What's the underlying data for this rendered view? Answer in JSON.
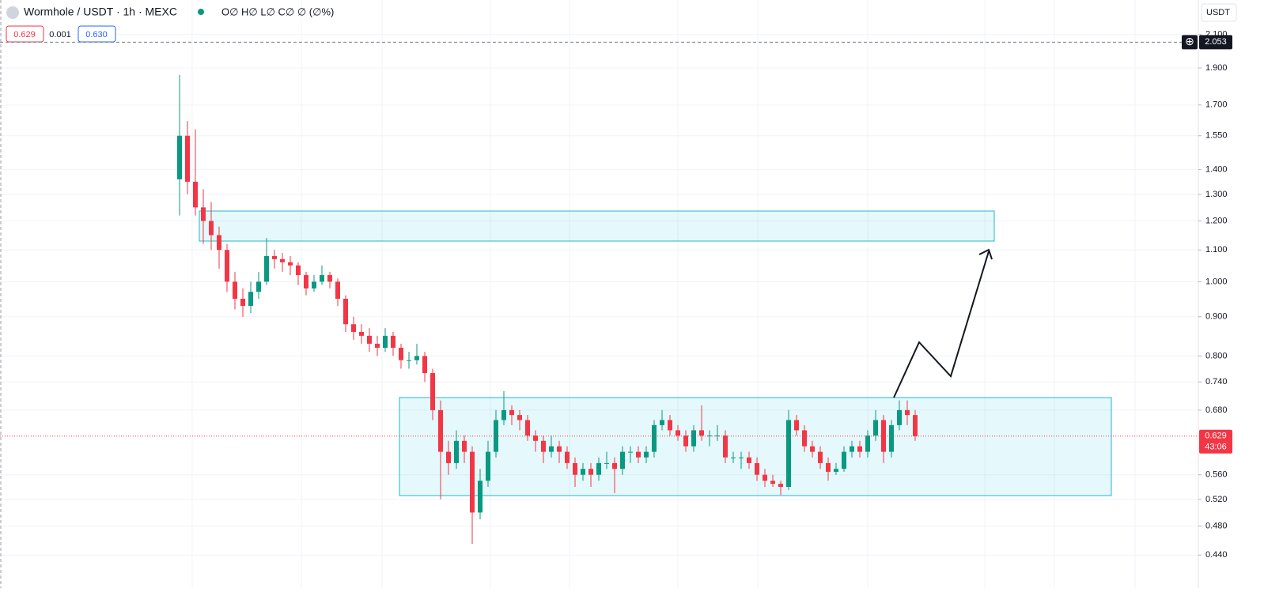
{
  "chart_data": {
    "type": "candlestick",
    "title": "Wormhole / USDT · 1h · MEXC",
    "ohlc_label": "O∅ H∅ L∅ C∅ ∅ (∅%)",
    "bid": "0.629",
    "spread": "0.001",
    "ask": "0.630",
    "currency": "USDT",
    "marker_price": {
      "value": 2.053,
      "label": "2.053"
    },
    "last_price": {
      "value": 0.629,
      "label": "0.629"
    },
    "countdown": "43:06",
    "log_scale": true,
    "grid": true,
    "up_color": "#089981",
    "down_color": "#f23645",
    "ylim": [
      0.412,
      2.33
    ],
    "yticks": [
      {
        "value": 0.44,
        "label": "0.440"
      },
      {
        "value": 0.48,
        "label": "0.480"
      },
      {
        "value": 0.52,
        "label": "0.520"
      },
      {
        "value": 0.56,
        "label": "0.560"
      },
      {
        "value": 0.68,
        "label": "0.680"
      },
      {
        "value": 0.74,
        "label": "0.740"
      },
      {
        "value": 0.8,
        "label": "0.800"
      },
      {
        "value": 0.9,
        "label": "0.900"
      },
      {
        "value": 1,
        "label": "1.000"
      },
      {
        "value": 1.1,
        "label": "1.100"
      },
      {
        "value": 1.2,
        "label": "1.200"
      },
      {
        "value": 1.3,
        "label": "1.300"
      },
      {
        "value": 1.4,
        "label": "1.400"
      },
      {
        "value": 1.55,
        "label": "1.550"
      },
      {
        "value": 1.7,
        "label": "1.700"
      },
      {
        "value": 1.9,
        "label": "1.900"
      },
      {
        "value": 2.1,
        "label": "2.100"
      }
    ],
    "candles": [
      [
        1.36,
        1.86,
        1.22,
        1.55
      ],
      [
        1.55,
        1.62,
        1.3,
        1.35
      ],
      [
        1.35,
        1.58,
        1.22,
        1.25
      ],
      [
        1.25,
        1.32,
        1.12,
        1.2
      ],
      [
        1.2,
        1.27,
        1.1,
        1.15
      ],
      [
        1.15,
        1.18,
        1.04,
        1.1
      ],
      [
        1.1,
        1.12,
        0.97,
        1.0
      ],
      [
        1.0,
        1.03,
        0.92,
        0.95
      ],
      [
        0.95,
        0.98,
        0.9,
        0.93
      ],
      [
        0.93,
        1.0,
        0.91,
        0.97
      ],
      [
        0.97,
        1.03,
        0.95,
        1.0
      ],
      [
        1.0,
        1.14,
        0.99,
        1.08
      ],
      [
        1.08,
        1.1,
        1.04,
        1.07
      ],
      [
        1.07,
        1.09,
        1.03,
        1.06
      ],
      [
        1.06,
        1.08,
        1.02,
        1.05
      ],
      [
        1.05,
        1.06,
        0.99,
        1.02
      ],
      [
        1.02,
        1.03,
        0.96,
        0.98
      ],
      [
        0.98,
        1.02,
        0.97,
        1.0
      ],
      [
        1.0,
        1.05,
        0.99,
        1.02
      ],
      [
        1.02,
        1.03,
        0.98,
        1.0
      ],
      [
        1.0,
        1.01,
        0.93,
        0.95
      ],
      [
        0.95,
        0.96,
        0.86,
        0.88
      ],
      [
        0.88,
        0.9,
        0.84,
        0.86
      ],
      [
        0.86,
        0.88,
        0.83,
        0.85
      ],
      [
        0.85,
        0.87,
        0.81,
        0.83
      ],
      [
        0.83,
        0.85,
        0.8,
        0.82
      ],
      [
        0.82,
        0.87,
        0.81,
        0.85
      ],
      [
        0.85,
        0.86,
        0.8,
        0.82
      ],
      [
        0.82,
        0.83,
        0.77,
        0.79
      ],
      [
        0.79,
        0.81,
        0.77,
        0.79
      ],
      [
        0.79,
        0.83,
        0.78,
        0.8
      ],
      [
        0.8,
        0.81,
        0.74,
        0.76
      ],
      [
        0.76,
        0.77,
        0.66,
        0.68
      ],
      [
        0.68,
        0.7,
        0.52,
        0.6
      ],
      [
        0.6,
        0.62,
        0.56,
        0.58
      ],
      [
        0.58,
        0.64,
        0.57,
        0.62
      ],
      [
        0.62,
        0.63,
        0.58,
        0.6
      ],
      [
        0.6,
        0.61,
        0.455,
        0.5
      ],
      [
        0.5,
        0.57,
        0.49,
        0.55
      ],
      [
        0.55,
        0.62,
        0.54,
        0.6
      ],
      [
        0.6,
        0.68,
        0.59,
        0.66
      ],
      [
        0.66,
        0.72,
        0.65,
        0.68
      ],
      [
        0.68,
        0.69,
        0.65,
        0.67
      ],
      [
        0.67,
        0.68,
        0.64,
        0.66
      ],
      [
        0.66,
        0.67,
        0.62,
        0.63
      ],
      [
        0.63,
        0.64,
        0.6,
        0.62
      ],
      [
        0.62,
        0.63,
        0.58,
        0.6
      ],
      [
        0.6,
        0.63,
        0.59,
        0.61
      ],
      [
        0.61,
        0.62,
        0.58,
        0.6
      ],
      [
        0.6,
        0.61,
        0.57,
        0.58
      ],
      [
        0.58,
        0.59,
        0.54,
        0.56
      ],
      [
        0.56,
        0.58,
        0.55,
        0.57
      ],
      [
        0.57,
        0.58,
        0.54,
        0.56
      ],
      [
        0.56,
        0.59,
        0.55,
        0.58
      ],
      [
        0.58,
        0.6,
        0.57,
        0.58
      ],
      [
        0.58,
        0.59,
        0.53,
        0.57
      ],
      [
        0.57,
        0.61,
        0.56,
        0.6
      ],
      [
        0.6,
        0.61,
        0.58,
        0.6
      ],
      [
        0.6,
        0.61,
        0.58,
        0.59
      ],
      [
        0.59,
        0.61,
        0.58,
        0.6
      ],
      [
        0.6,
        0.66,
        0.59,
        0.65
      ],
      [
        0.65,
        0.68,
        0.64,
        0.66
      ],
      [
        0.66,
        0.67,
        0.63,
        0.64
      ],
      [
        0.64,
        0.65,
        0.62,
        0.63
      ],
      [
        0.63,
        0.64,
        0.6,
        0.61
      ],
      [
        0.61,
        0.65,
        0.6,
        0.64
      ],
      [
        0.64,
        0.69,
        0.62,
        0.63
      ],
      [
        0.63,
        0.64,
        0.61,
        0.63
      ],
      [
        0.63,
        0.65,
        0.62,
        0.63
      ],
      [
        0.63,
        0.64,
        0.58,
        0.59
      ],
      [
        0.59,
        0.6,
        0.58,
        0.59
      ],
      [
        0.59,
        0.6,
        0.57,
        0.59
      ],
      [
        0.59,
        0.6,
        0.57,
        0.58
      ],
      [
        0.58,
        0.59,
        0.55,
        0.56
      ],
      [
        0.56,
        0.57,
        0.54,
        0.55
      ],
      [
        0.55,
        0.56,
        0.54,
        0.545
      ],
      [
        0.545,
        0.55,
        0.527,
        0.54
      ],
      [
        0.54,
        0.68,
        0.535,
        0.66
      ],
      [
        0.66,
        0.67,
        0.63,
        0.64
      ],
      [
        0.64,
        0.65,
        0.6,
        0.61
      ],
      [
        0.61,
        0.62,
        0.59,
        0.6
      ],
      [
        0.6,
        0.61,
        0.57,
        0.58
      ],
      [
        0.58,
        0.59,
        0.55,
        0.565
      ],
      [
        0.565,
        0.58,
        0.56,
        0.57
      ],
      [
        0.57,
        0.61,
        0.565,
        0.6
      ],
      [
        0.6,
        0.62,
        0.59,
        0.61
      ],
      [
        0.61,
        0.62,
        0.59,
        0.6
      ],
      [
        0.6,
        0.64,
        0.59,
        0.63
      ],
      [
        0.63,
        0.68,
        0.62,
        0.66
      ],
      [
        0.66,
        0.67,
        0.58,
        0.6
      ],
      [
        0.6,
        0.66,
        0.59,
        0.65
      ],
      [
        0.65,
        0.7,
        0.64,
        0.68
      ],
      [
        0.68,
        0.7,
        0.65,
        0.67
      ],
      [
        0.67,
        0.68,
        0.62,
        0.629
      ]
    ]
  }
}
